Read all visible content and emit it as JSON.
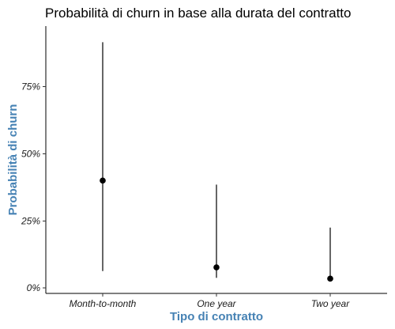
{
  "chart_data": {
    "type": "pointrange",
    "title": "Probabilità di churn in base alla durata del contratto",
    "xlabel": "Tipo di contratto",
    "ylabel": "Probabilità di churn",
    "categories": [
      "Month-to-month",
      "One year",
      "Two year"
    ],
    "values": [
      0.4,
      0.077,
      0.035
    ],
    "lower": [
      0.063,
      0.038,
      0.032
    ],
    "upper": [
      0.915,
      0.385,
      0.225
    ],
    "ylim": [
      -0.02,
      0.975
    ],
    "yticks": [
      0,
      0.25,
      0.5,
      0.75
    ],
    "ytick_labels": [
      "0%",
      "25%",
      "50%",
      "75%"
    ],
    "grid": false,
    "legend": "none",
    "colors": {
      "point": "#000000",
      "axis_title": "#4682B4"
    }
  }
}
